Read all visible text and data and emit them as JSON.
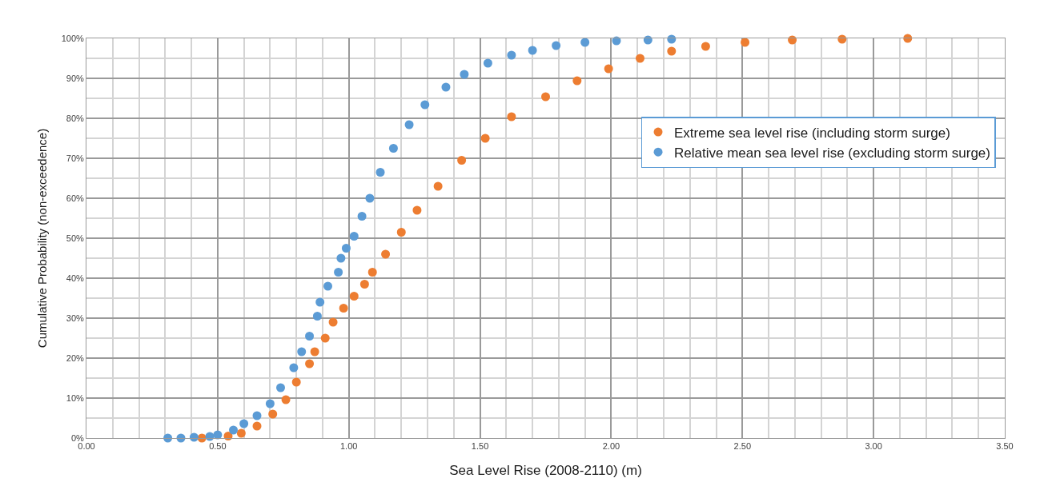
{
  "chart_data": {
    "type": "scatter",
    "xlabel": "Sea Level Rise (2008-2110) (m)",
    "ylabel": "Cumulative Probability (non-exceedence)",
    "xlim": [
      0,
      3.5
    ],
    "xticks": [
      {
        "value": 0,
        "label": "0.00"
      },
      {
        "value": 0.5,
        "label": "0.50"
      },
      {
        "value": 1,
        "label": "1.00"
      },
      {
        "value": 1.5,
        "label": "1.50"
      },
      {
        "value": 2,
        "label": "2.00"
      },
      {
        "value": 2.5,
        "label": "2.50"
      },
      {
        "value": 3,
        "label": "3.00"
      },
      {
        "value": 3.5,
        "label": "3.50"
      }
    ],
    "ylim": [
      0,
      100
    ],
    "yticks": [
      {
        "value": 0,
        "label": "0%"
      },
      {
        "value": 10,
        "label": "10%"
      },
      {
        "value": 20,
        "label": "20%"
      },
      {
        "value": 30,
        "label": "30%"
      },
      {
        "value": 40,
        "label": "40%"
      },
      {
        "value": 50,
        "label": "50%"
      },
      {
        "value": 60,
        "label": "60%"
      },
      {
        "value": 70,
        "label": "70%"
      },
      {
        "value": 80,
        "label": "80%"
      },
      {
        "value": 90,
        "label": "90%"
      },
      {
        "value": 100,
        "label": "100%"
      }
    ],
    "grid": true,
    "legend": "right",
    "marker": "circle",
    "series": [
      {
        "name": "Extreme sea level rise (including storm surge)",
        "color": "#ed7d31",
        "x": [
          0.44,
          0.54,
          0.59,
          0.65,
          0.71,
          0.76,
          0.8,
          0.85,
          0.87,
          0.91,
          0.94,
          0.98,
          1.02,
          1.06,
          1.09,
          1.14,
          1.2,
          1.26,
          1.34,
          1.43,
          1.52,
          1.62,
          1.75,
          1.87,
          1.99,
          2.11,
          2.23,
          2.36,
          2.51,
          2.69,
          2.88,
          3.13
        ],
        "values": [
          0,
          0.5,
          1.2,
          3,
          6,
          9.6,
          14,
          18.6,
          21.6,
          25,
          29,
          32.5,
          35.5,
          38.5,
          41.5,
          46,
          51.5,
          57,
          63,
          69.5,
          75,
          80.4,
          85.4,
          89.4,
          92.4,
          95,
          96.8,
          98,
          99,
          99.6,
          99.8,
          100
        ]
      },
      {
        "name": "Relative mean sea level rise (excluding storm surge)",
        "color": "#5b9bd5",
        "x": [
          0.31,
          0.36,
          0.41,
          0.47,
          0.5,
          0.56,
          0.6,
          0.65,
          0.7,
          0.74,
          0.79,
          0.82,
          0.85,
          0.88,
          0.89,
          0.92,
          0.96,
          0.97,
          0.99,
          1.02,
          1.05,
          1.08,
          1.12,
          1.17,
          1.23,
          1.29,
          1.37,
          1.44,
          1.53,
          1.62,
          1.7,
          1.79,
          1.9,
          2.02,
          2.14,
          2.23
        ],
        "values": [
          0,
          0,
          0.2,
          0.4,
          0.8,
          2,
          3.6,
          5.6,
          8.6,
          12.6,
          17.6,
          21.6,
          25.5,
          30.5,
          34,
          38,
          41.5,
          45,
          47.5,
          50.5,
          55.5,
          60,
          66.5,
          72.5,
          78.4,
          83.4,
          87.8,
          91,
          93.8,
          95.8,
          97,
          98.2,
          99,
          99.4,
          99.6,
          99.8
        ]
      }
    ]
  }
}
